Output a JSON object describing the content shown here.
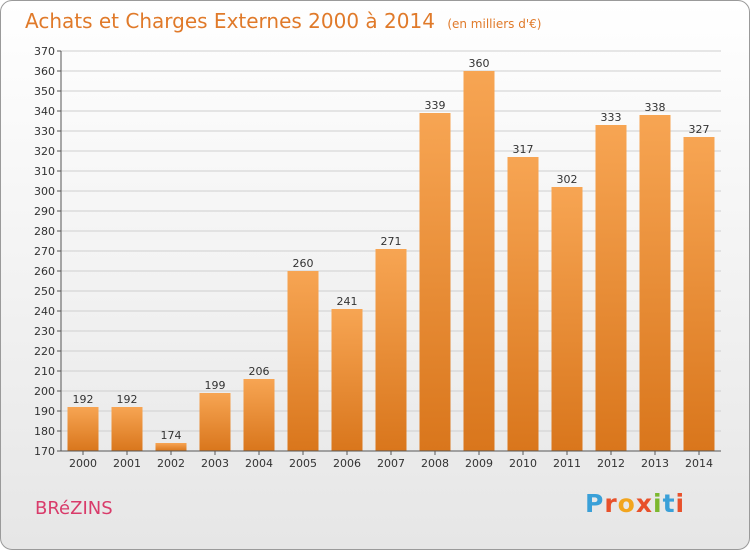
{
  "header": {
    "title": "Achats et Charges Externes 2000 à 2014",
    "unit": "(en milliers d'€)"
  },
  "footer": {
    "place": "BRéZINS",
    "logo": "Proxiti",
    "logo_colors": [
      "#3aa0d8",
      "#e8512b",
      "#f2a51e",
      "#e8512b",
      "#7cb82f",
      "#3aa0d8",
      "#e8512b"
    ]
  },
  "colors": {
    "bar_top": "#f7a553",
    "bar_bottom": "#d9761c",
    "grid": "#cfcfcf",
    "title": "#e07a2a"
  },
  "chart_data": {
    "type": "bar",
    "title": "Achats et Charges Externes 2000 à 2014",
    "subtitle": "(en milliers d'€)",
    "categories": [
      "2000",
      "2001",
      "2002",
      "2003",
      "2004",
      "2005",
      "2006",
      "2007",
      "2008",
      "2009",
      "2010",
      "2011",
      "2012",
      "2013",
      "2014"
    ],
    "values": [
      192,
      192,
      174,
      199,
      206,
      260,
      241,
      271,
      339,
      360,
      317,
      302,
      333,
      338,
      327
    ],
    "ylim": [
      170,
      370
    ],
    "ytick_step": 10,
    "grid": true,
    "xlabel": "",
    "ylabel": ""
  }
}
